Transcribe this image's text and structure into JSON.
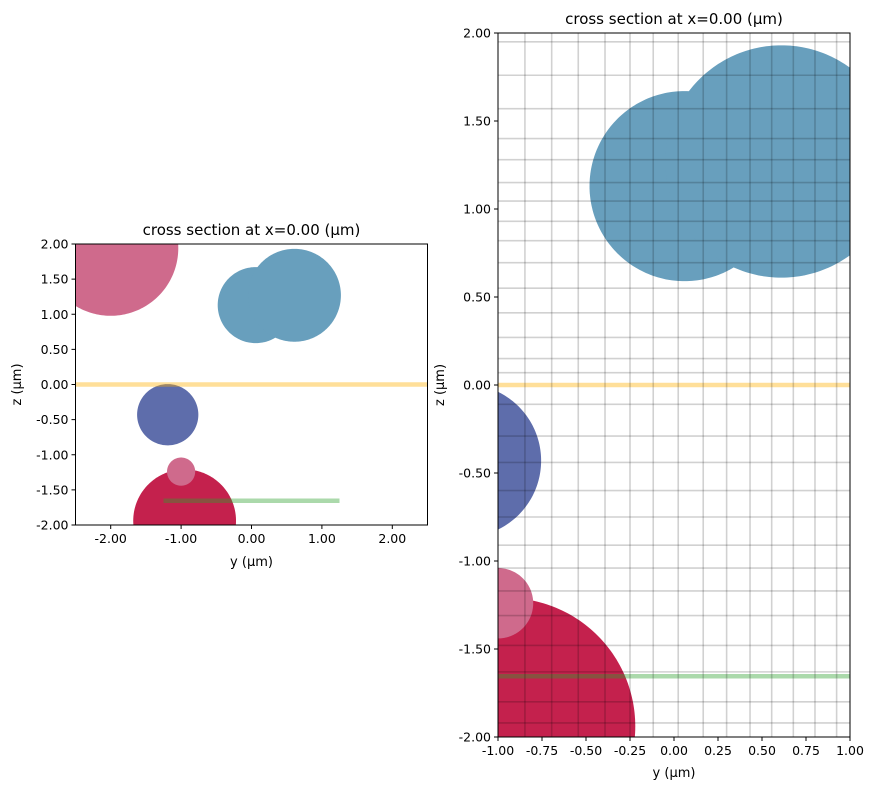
{
  "chart_data": [
    {
      "type": "scatter",
      "title": "cross section at x=0.00 (μm)",
      "xlabel": "y (μm)",
      "ylabel": "z (μm)",
      "xlim": [
        -2.5,
        2.5
      ],
      "ylim": [
        -2.0,
        2.0
      ],
      "xticks": [
        -2,
        -1,
        0,
        1,
        2
      ],
      "xtick_labels": [
        "-2.00",
        "-1.00",
        "0.00",
        "1.00",
        "2.00"
      ],
      "yticks": [
        -2,
        -1.5,
        -1,
        -0.5,
        0,
        0.5,
        1,
        1.5,
        2
      ],
      "ytick_labels": [
        "-2.00",
        "-1.50",
        "-1.00",
        "-0.50",
        "0.00",
        "0.50",
        "1.00",
        "1.50",
        "2.00"
      ],
      "grid": false,
      "grid_y": [],
      "grid_z": []
    },
    {
      "type": "scatter",
      "title": "cross section at x=0.00 (μm)",
      "xlabel": "y (μm)",
      "ylabel": "z (μm)",
      "xlim": [
        -1.0,
        1.0
      ],
      "ylim": [
        -2.0,
        2.0
      ],
      "xticks": [
        -1,
        -0.75,
        -0.5,
        -0.25,
        0,
        0.25,
        0.5,
        0.75,
        1
      ],
      "xtick_labels": [
        "-1.00",
        "-0.75",
        "-0.50",
        "-0.25",
        "0.00",
        "0.25",
        "0.50",
        "0.75",
        "1.00"
      ],
      "yticks": [
        -2,
        -1.5,
        -1,
        -0.5,
        0,
        0.5,
        1,
        1.5,
        2
      ],
      "ytick_labels": [
        "-2.00",
        "-1.50",
        "-1.00",
        "-0.50",
        "0.00",
        "0.50",
        "1.00",
        "1.50",
        "2.00"
      ],
      "grid": true,
      "grid_y": [
        -0.847,
        -0.695,
        -0.544,
        -0.392,
        -0.25,
        -0.118,
        0.024,
        0.166,
        0.299,
        0.432,
        0.555,
        0.678,
        0.801,
        0.924
      ],
      "grid_z": [
        1.95,
        1.76,
        1.57,
        1.4,
        1.28,
        1.15,
        1.045,
        0.93,
        0.82,
        0.695,
        0.55,
        0.41,
        0.27,
        0.15,
        0.07,
        -0.11,
        -0.29,
        -0.44,
        -0.6,
        -0.75,
        -0.91,
        -1.04,
        -1.17,
        -1.31,
        -1.48,
        -1.63,
        -1.8,
        -1.92
      ]
    }
  ],
  "shapes": [
    {
      "kind": "circle",
      "name": "pink-large-circle",
      "cy": -2.0,
      "cz": 1.94,
      "r": 0.96,
      "color": "#cf6a8c"
    },
    {
      "kind": "circle",
      "name": "blue-circle-1",
      "cy": 0.06,
      "cz": 1.13,
      "r": 0.54,
      "color": "#689fbd"
    },
    {
      "kind": "circle",
      "name": "blue-circle-2",
      "cy": 0.61,
      "cz": 1.27,
      "r": 0.66,
      "color": "#689fbd"
    },
    {
      "kind": "circle",
      "name": "navy-circle",
      "cy": -1.19,
      "cz": -0.43,
      "r": 0.435,
      "color": "#5e6dab"
    },
    {
      "kind": "circle",
      "name": "red-circle",
      "cy": -0.95,
      "cz": -1.94,
      "r": 0.73,
      "color": "#c4214d"
    },
    {
      "kind": "circle",
      "name": "pink-small-circle",
      "cy": -1.0,
      "cz": -1.24,
      "r": 0.2,
      "color": "#cf6a8c"
    }
  ],
  "lines": [
    {
      "name": "yellow-source-line",
      "z": 0.0,
      "y0": -2.5,
      "y1": 2.5,
      "color": "#ffb000",
      "alpha": 0.4
    },
    {
      "name": "green-monitor-line",
      "z": -1.655,
      "y0": -1.25,
      "y1": 1.25,
      "color": "#2ca02c",
      "alpha": 0.4
    }
  ]
}
